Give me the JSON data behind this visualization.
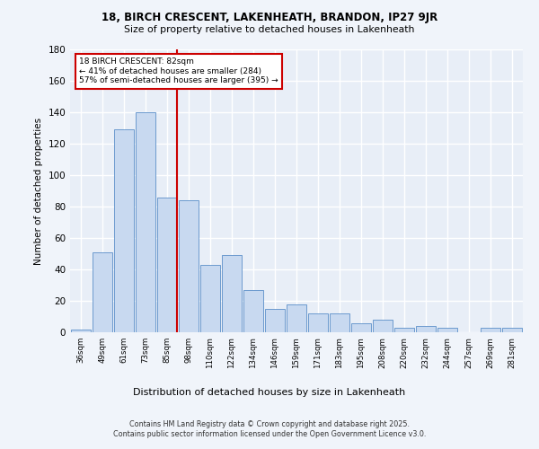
{
  "title1": "18, BIRCH CRESCENT, LAKENHEATH, BRANDON, IP27 9JR",
  "title2": "Size of property relative to detached houses in Lakenheath",
  "xlabel": "Distribution of detached houses by size in Lakenheath",
  "ylabel": "Number of detached properties",
  "categories": [
    "36sqm",
    "49sqm",
    "61sqm",
    "73sqm",
    "85sqm",
    "98sqm",
    "110sqm",
    "122sqm",
    "134sqm",
    "146sqm",
    "159sqm",
    "171sqm",
    "183sqm",
    "195sqm",
    "208sqm",
    "220sqm",
    "232sqm",
    "244sqm",
    "257sqm",
    "269sqm",
    "281sqm"
  ],
  "values": [
    2,
    51,
    129,
    140,
    86,
    84,
    43,
    49,
    27,
    15,
    18,
    12,
    12,
    6,
    8,
    3,
    4,
    3,
    0,
    3,
    3
  ],
  "bar_color": "#c8d9f0",
  "bar_edge_color": "#5b8fc9",
  "vline_x_index": 4,
  "marker_label": "18 BIRCH CRESCENT: 82sqm",
  "annotation_line1": "← 41% of detached houses are smaller (284)",
  "annotation_line2": "57% of semi-detached houses are larger (395) →",
  "annotation_box_color": "#ffffff",
  "annotation_box_edge_color": "#cc0000",
  "vline_color": "#cc0000",
  "ylim": [
    0,
    180
  ],
  "yticks": [
    0,
    20,
    40,
    60,
    80,
    100,
    120,
    140,
    160,
    180
  ],
  "bg_color": "#e8eef7",
  "grid_color": "#ffffff",
  "fig_bg_color": "#f0f4fa",
  "footer1": "Contains HM Land Registry data © Crown copyright and database right 2025.",
  "footer2": "Contains public sector information licensed under the Open Government Licence v3.0."
}
